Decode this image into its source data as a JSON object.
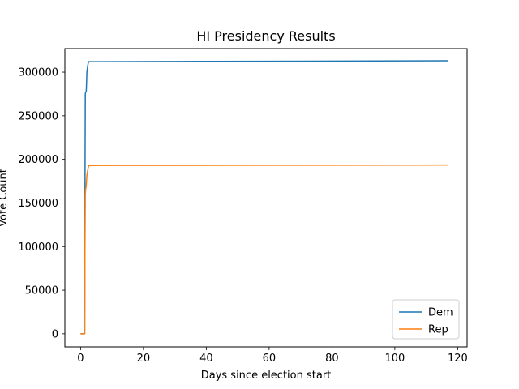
{
  "chart_data": {
    "type": "line",
    "title": "HI Presidency Results",
    "xlabel": "Days since election start",
    "ylabel": "Vote Count",
    "xlim": [
      -5,
      123
    ],
    "ylim": [
      -15000,
      327000
    ],
    "xticks": [
      0,
      20,
      40,
      60,
      80,
      100,
      120
    ],
    "yticks": [
      0,
      50000,
      100000,
      150000,
      200000,
      250000,
      300000
    ],
    "xtick_labels": [
      "0",
      "20",
      "40",
      "60",
      "80",
      "100",
      "120"
    ],
    "ytick_labels": [
      "0",
      "50000",
      "100000",
      "150000",
      "200000",
      "250000",
      "300000"
    ],
    "grid": false,
    "legend_position": "lower-right",
    "series": [
      {
        "name": "Dem",
        "color": "#1f77b4",
        "x": [
          0,
          1.3,
          1.4,
          1.5,
          1.6,
          1.8,
          1.9,
          2.0,
          2.1,
          2.2,
          2.4,
          2.6,
          117
        ],
        "y": [
          0,
          0,
          160000,
          275000,
          277000,
          278000,
          288000,
          300000,
          303000,
          305000,
          310000,
          312000,
          313000
        ]
      },
      {
        "name": "Rep",
        "color": "#ff7f0e",
        "x": [
          0,
          1.3,
          1.4,
          1.5,
          1.6,
          1.8,
          1.9,
          2.0,
          2.1,
          2.2,
          2.4,
          2.6,
          117
        ],
        "y": [
          0,
          0,
          100000,
          160000,
          165000,
          170000,
          176000,
          181000,
          184000,
          186000,
          190000,
          193000,
          193500
        ]
      }
    ]
  }
}
